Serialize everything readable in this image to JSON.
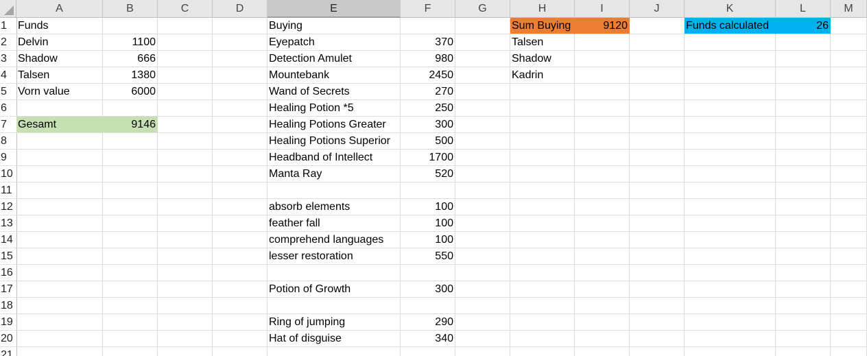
{
  "spreadsheet": {
    "columns": [
      "A",
      "B",
      "C",
      "D",
      "E",
      "F",
      "G",
      "H",
      "I",
      "J",
      "K",
      "L",
      "M"
    ],
    "selected_column": "E",
    "rows": [
      "1",
      "2",
      "3",
      "4",
      "5",
      "6",
      "7",
      "8",
      "9",
      "10",
      "11",
      "12",
      "13",
      "14",
      "15",
      "16",
      "17",
      "18",
      "19",
      "20",
      "21"
    ],
    "cells": [
      {
        "ref": "A1",
        "text": "Funds"
      },
      {
        "ref": "A2",
        "text": "Delvin"
      },
      {
        "ref": "B2",
        "text": "1100",
        "num": true
      },
      {
        "ref": "A3",
        "text": "Shadow"
      },
      {
        "ref": "B3",
        "text": "666",
        "num": true
      },
      {
        "ref": "A4",
        "text": "Talsen"
      },
      {
        "ref": "B4",
        "text": "1380",
        "num": true
      },
      {
        "ref": "A5",
        "text": "Vorn value"
      },
      {
        "ref": "B5",
        "text": "6000",
        "num": true
      },
      {
        "ref": "A7",
        "text": "Gesamt",
        "fill": "#c6e0b4"
      },
      {
        "ref": "B7",
        "text": "9146",
        "num": true,
        "fill": "#c6e0b4"
      },
      {
        "ref": "E1",
        "text": "Buying"
      },
      {
        "ref": "E2",
        "text": "Eyepatch"
      },
      {
        "ref": "F2",
        "text": "370",
        "num": true
      },
      {
        "ref": "E3",
        "text": "Detection Amulet"
      },
      {
        "ref": "F3",
        "text": "980",
        "num": true
      },
      {
        "ref": "E4",
        "text": "Mountebank"
      },
      {
        "ref": "F4",
        "text": "2450",
        "num": true
      },
      {
        "ref": "E5",
        "text": "Wand of Secrets"
      },
      {
        "ref": "F5",
        "text": "270",
        "num": true
      },
      {
        "ref": "E6",
        "text": "Healing Potion *5"
      },
      {
        "ref": "F6",
        "text": "250",
        "num": true
      },
      {
        "ref": "E7",
        "text": "Healing Potions Greater"
      },
      {
        "ref": "F7",
        "text": "300",
        "num": true
      },
      {
        "ref": "E8",
        "text": "Healing Potions Superior"
      },
      {
        "ref": "F8",
        "text": "500",
        "num": true
      },
      {
        "ref": "E9",
        "text": "Headband of Intellect"
      },
      {
        "ref": "F9",
        "text": "1700",
        "num": true
      },
      {
        "ref": "E10",
        "text": "Manta Ray"
      },
      {
        "ref": "F10",
        "text": "520",
        "num": true
      },
      {
        "ref": "E12",
        "text": "absorb elements"
      },
      {
        "ref": "F12",
        "text": "100",
        "num": true
      },
      {
        "ref": "E13",
        "text": "feather fall"
      },
      {
        "ref": "F13",
        "text": "100",
        "num": true
      },
      {
        "ref": "E14",
        "text": "comprehend languages"
      },
      {
        "ref": "F14",
        "text": "100",
        "num": true
      },
      {
        "ref": "E15",
        "text": "lesser restoration"
      },
      {
        "ref": "F15",
        "text": "550",
        "num": true
      },
      {
        "ref": "E17",
        "text": "Potion of Growth"
      },
      {
        "ref": "F17",
        "text": "300",
        "num": true
      },
      {
        "ref": "E19",
        "text": "Ring of jumping"
      },
      {
        "ref": "F19",
        "text": "290",
        "num": true
      },
      {
        "ref": "E20",
        "text": "Hat of disguise"
      },
      {
        "ref": "F20",
        "text": "340",
        "num": true
      },
      {
        "ref": "H1",
        "text": "Sum Buying",
        "fill": "#ed7d31"
      },
      {
        "ref": "I1",
        "text": "9120",
        "num": true,
        "fill": "#ed7d31"
      },
      {
        "ref": "H2",
        "text": "Talsen"
      },
      {
        "ref": "H3",
        "text": "Shadow"
      },
      {
        "ref": "H4",
        "text": "Kadrin"
      },
      {
        "ref": "K1",
        "text": "Funds calculated",
        "fill": "#00b0f0"
      },
      {
        "ref": "L1",
        "text": "26",
        "num": true,
        "fill": "#00b0f0"
      }
    ]
  },
  "colors": {
    "header_bg": "#e6e6e6",
    "header_selected_bg": "#c8c8c8",
    "gridline": "#dcdcdc",
    "green_fill": "#c6e0b4",
    "orange_fill": "#ed7d31",
    "blue_fill": "#00b0f0"
  },
  "icons": {
    "corner": "select-all-triangle-icon"
  }
}
